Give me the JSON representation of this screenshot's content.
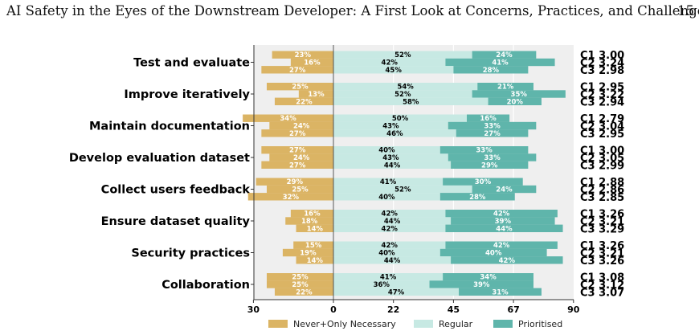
{
  "header": {
    "running_title": "AI Safety in the Eyes of the Downstream Developer: A First Look at Concerns, Practices, and Challenges",
    "page_number": "15"
  },
  "chart_data": {
    "type": "bar",
    "orientation": "horizontal-diverging",
    "x_ticks": [
      "30",
      "0",
      "22",
      "45",
      "67",
      "90"
    ],
    "grid": true,
    "legend_position": "bottom",
    "legend": [
      "Never+Only Necessary",
      "Regular",
      "Prioritised"
    ],
    "colors": {
      "never": "#DBB464",
      "regular": "#C7E9E3",
      "prioritised": "#5FB5AB",
      "background": "#EFEFEF"
    },
    "categories": [
      {
        "label": "Test and evaluate",
        "rows": [
          {
            "c": "C1",
            "score": "3.00",
            "never": 23,
            "regular": 52,
            "prioritised": 24
          },
          {
            "c": "C2",
            "score": "3.24",
            "never": 16,
            "regular": 42,
            "prioritised": 41
          },
          {
            "c": "C3",
            "score": "2.98",
            "never": 27,
            "regular": 45,
            "prioritised": 28
          }
        ]
      },
      {
        "label": "Improve iteratively",
        "rows": [
          {
            "c": "C1",
            "score": "2.95",
            "never": 25,
            "regular": 54,
            "prioritised": 21
          },
          {
            "c": "C2",
            "score": "3.22",
            "never": 13,
            "regular": 52,
            "prioritised": 35
          },
          {
            "c": "C3",
            "score": "2.94",
            "never": 22,
            "regular": 58,
            "prioritised": 20
          }
        ]
      },
      {
        "label": "Maintain documentation",
        "rows": [
          {
            "c": "C1",
            "score": "2.79",
            "never": 34,
            "regular": 50,
            "prioritised": 16
          },
          {
            "c": "C2",
            "score": "3.04",
            "never": 24,
            "regular": 43,
            "prioritised": 33
          },
          {
            "c": "C3",
            "score": "2.95",
            "never": 27,
            "regular": 46,
            "prioritised": 27
          }
        ]
      },
      {
        "label": "Develop evaluation dataset",
        "rows": [
          {
            "c": "C1",
            "score": "3.00",
            "never": 27,
            "regular": 40,
            "prioritised": 33
          },
          {
            "c": "C2",
            "score": "3.05",
            "never": 24,
            "regular": 43,
            "prioritised": 33
          },
          {
            "c": "C3",
            "score": "2.99",
            "never": 27,
            "regular": 44,
            "prioritised": 29
          }
        ]
      },
      {
        "label": "Collect users feedback",
        "rows": [
          {
            "c": "C1",
            "score": "2.88",
            "never": 29,
            "regular": 41,
            "prioritised": 30
          },
          {
            "c": "C2",
            "score": "2.86",
            "never": 25,
            "regular": 52,
            "prioritised": 24
          },
          {
            "c": "C3",
            "score": "2.85",
            "never": 32,
            "regular": 40,
            "prioritised": 28
          }
        ]
      },
      {
        "label": "Ensure dataset quality",
        "rows": [
          {
            "c": "C1",
            "score": "3.26",
            "never": 16,
            "regular": 42,
            "prioritised": 42
          },
          {
            "c": "C2",
            "score": "3.21",
            "never": 18,
            "regular": 44,
            "prioritised": 39
          },
          {
            "c": "C3",
            "score": "3.29",
            "never": 14,
            "regular": 42,
            "prioritised": 44
          }
        ]
      },
      {
        "label": "Security practices",
        "rows": [
          {
            "c": "C1",
            "score": "3.26",
            "never": 15,
            "regular": 42,
            "prioritised": 42
          },
          {
            "c": "C2",
            "score": "3.21",
            "never": 19,
            "regular": 40,
            "prioritised": 40
          },
          {
            "c": "C3",
            "score": "3.26",
            "never": 14,
            "regular": 44,
            "prioritised": 42
          }
        ]
      },
      {
        "label": "Collaboration",
        "rows": [
          {
            "c": "C1",
            "score": "3.08",
            "never": 25,
            "regular": 41,
            "prioritised": 34
          },
          {
            "c": "C2",
            "score": "3.12",
            "never": 25,
            "regular": 36,
            "prioritised": 39
          },
          {
            "c": "C3",
            "score": "3.07",
            "never": 22,
            "regular": 47,
            "prioritised": 31
          }
        ]
      }
    ]
  }
}
